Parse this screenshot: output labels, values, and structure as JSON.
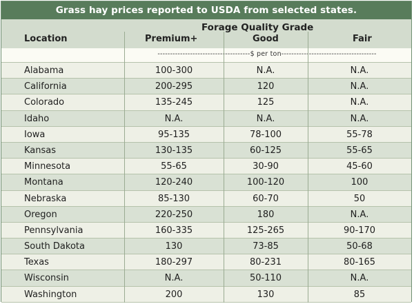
{
  "table": {
    "title": "Grass hay prices reported to USDA from selected states.",
    "group_header": "Forage Quality Grade",
    "columns": {
      "location": "Location",
      "premium": "Premium+",
      "good": "Good",
      "fair": "Fair"
    },
    "units_line": "-------------------------------------$ per ton--------------------------------------",
    "rows": [
      {
        "location": "Alabama",
        "premium": "100-300",
        "good": "N.A.",
        "fair": "N.A."
      },
      {
        "location": "California",
        "premium": "200-295",
        "good": "120",
        "fair": "N.A."
      },
      {
        "location": "Colorado",
        "premium": "135-245",
        "good": "125",
        "fair": "N.A."
      },
      {
        "location": "Idaho",
        "premium": "N.A.",
        "good": "N.A.",
        "fair": "N.A."
      },
      {
        "location": "Iowa",
        "premium": "95-135",
        "good": "78-100",
        "fair": "55-78"
      },
      {
        "location": "Kansas",
        "premium": "130-135",
        "good": "60-125",
        "fair": "55-65"
      },
      {
        "location": "Minnesota",
        "premium": "55-65",
        "good": "30-90",
        "fair": "45-60"
      },
      {
        "location": "Montana",
        "premium": "120-240",
        "good": "100-120",
        "fair": "100"
      },
      {
        "location": "Nebraska",
        "premium": "85-130",
        "good": "60-70",
        "fair": "50"
      },
      {
        "location": "Oregon",
        "premium": "220-250",
        "good": "180",
        "fair": "N.A."
      },
      {
        "location": "Pennsylvania",
        "premium": "160-335",
        "good": "125-265",
        "fair": "90-170"
      },
      {
        "location": "South Dakota",
        "premium": "130",
        "good": "73-85",
        "fair": "50-68"
      },
      {
        "location": "Texas",
        "premium": "180-297",
        "good": "80-231",
        "fair": "80-165"
      },
      {
        "location": "Wisconsin",
        "premium": "N.A.",
        "good": "50-110",
        "fair": "N.A."
      },
      {
        "location": "Washington",
        "premium": "200",
        "good": "130",
        "fair": "85"
      }
    ]
  }
}
